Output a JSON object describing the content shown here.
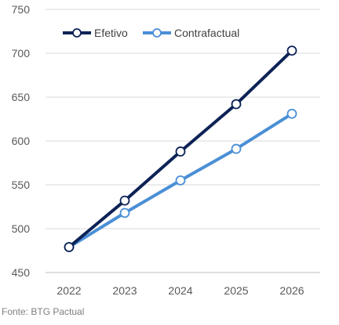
{
  "chart_data": {
    "type": "line",
    "x": [
      "2022",
      "2023",
      "2024",
      "2025",
      "2026"
    ],
    "series": [
      {
        "name": "Efetivo",
        "values": [
          479,
          532,
          588,
          642,
          703
        ],
        "color": "#0d2256"
      },
      {
        "name": "Contrafactual",
        "values": [
          479,
          518,
          555,
          591,
          631
        ],
        "color": "#4a8fd6"
      }
    ],
    "ylim": [
      450,
      750
    ],
    "yticks": [
      450,
      500,
      550,
      600,
      650,
      700,
      750
    ],
    "grid": true,
    "legend_position": "top-left"
  },
  "source": "Fonte: BTG Pactual"
}
